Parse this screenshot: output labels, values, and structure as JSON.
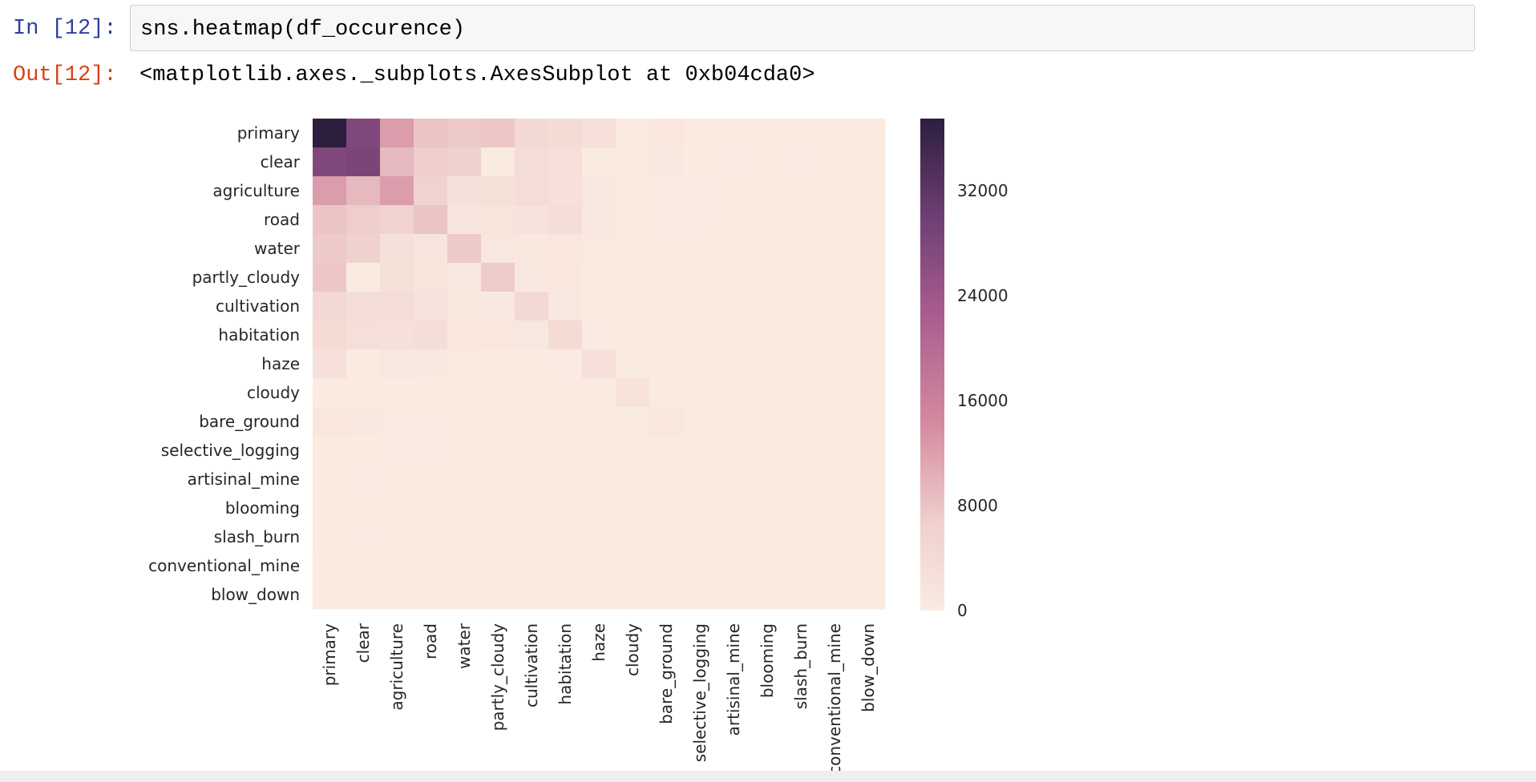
{
  "cell": {
    "in_prompt": "In [12]:",
    "code": "sns.heatmap(df_occurence)",
    "out_prompt": "Out[12]:",
    "output_text": "<matplotlib.axes._subplots.AxesSubplot at 0xb04cda0>"
  },
  "colors": {
    "prompt_in": "#303f9f",
    "prompt_out": "#d84315",
    "cmap_low": "#faebe1",
    "cmap_mid": "#d48aa0",
    "cmap_high": "#2d1e3e"
  },
  "chart_data": {
    "type": "heatmap",
    "title": "",
    "xlabel": "",
    "ylabel": "",
    "rows": [
      "primary",
      "clear",
      "agriculture",
      "road",
      "water",
      "partly_cloudy",
      "cultivation",
      "habitation",
      "haze",
      "cloudy",
      "bare_ground",
      "selective_logging",
      "artisinal_mine",
      "blooming",
      "slash_burn",
      "conventional_mine",
      "blow_down"
    ],
    "columns": [
      "primary",
      "clear",
      "agriculture",
      "road",
      "water",
      "partly_cloudy",
      "cultivation",
      "habitation",
      "haze",
      "cloudy",
      "bare_ground",
      "selective_logging",
      "artisinal_mine",
      "blooming",
      "slash_burn",
      "conventional_mine",
      "blow_down"
    ],
    "values": [
      [
        37500,
        27700,
        12300,
        8000,
        7400,
        7700,
        4500,
        3700,
        2700,
        0,
        900,
        300,
        300,
        300,
        200,
        100,
        100
      ],
      [
        27700,
        28400,
        9200,
        7100,
        6500,
        0,
        3500,
        3000,
        0,
        0,
        750,
        250,
        150,
        250,
        150,
        60,
        80
      ],
      [
        12300,
        9200,
        12300,
        6000,
        2400,
        2800,
        3400,
        2700,
        1100,
        0,
        450,
        140,
        40,
        30,
        120,
        20,
        20
      ],
      [
        8000,
        7100,
        6000,
        8000,
        1700,
        1600,
        2000,
        3200,
        800,
        0,
        400,
        130,
        30,
        30,
        100,
        100,
        10
      ],
      [
        7400,
        6500,
        2400,
        1700,
        7400,
        1100,
        850,
        920,
        520,
        0,
        320,
        60,
        250,
        60,
        40,
        20,
        10
      ],
      [
        7700,
        0,
        2800,
        1600,
        1100,
        7200,
        750,
        900,
        0,
        0,
        60,
        10,
        10,
        5,
        10,
        10,
        5
      ],
      [
        4500,
        3500,
        3400,
        2000,
        850,
        750,
        4500,
        970,
        200,
        0,
        90,
        60,
        20,
        40,
        120,
        5,
        5
      ],
      [
        3700,
        3000,
        2700,
        3200,
        920,
        900,
        970,
        3700,
        150,
        0,
        260,
        10,
        30,
        10,
        30,
        10,
        5
      ],
      [
        2700,
        0,
        1100,
        800,
        520,
        0,
        200,
        150,
        2700,
        0,
        40,
        5,
        5,
        5,
        5,
        5,
        2
      ],
      [
        0,
        0,
        0,
        0,
        0,
        0,
        0,
        0,
        0,
        2100,
        0,
        0,
        0,
        0,
        0,
        0,
        0
      ],
      [
        900,
        750,
        450,
        400,
        320,
        60,
        90,
        260,
        40,
        0,
        900,
        5,
        40,
        5,
        5,
        10,
        5
      ],
      [
        300,
        250,
        140,
        130,
        60,
        10,
        60,
        10,
        5,
        0,
        5,
        300,
        5,
        10,
        5,
        0,
        5
      ],
      [
        300,
        150,
        40,
        30,
        250,
        10,
        20,
        30,
        5,
        0,
        40,
        5,
        300,
        0,
        0,
        10,
        0
      ],
      [
        300,
        250,
        30,
        30,
        60,
        5,
        40,
        10,
        5,
        0,
        5,
        10,
        0,
        300,
        5,
        0,
        5
      ],
      [
        200,
        150,
        120,
        100,
        40,
        10,
        120,
        30,
        5,
        0,
        5,
        5,
        0,
        5,
        200,
        0,
        0
      ],
      [
        100,
        60,
        20,
        100,
        20,
        10,
        5,
        10,
        5,
        0,
        10,
        0,
        10,
        0,
        0,
        100,
        0
      ],
      [
        100,
        80,
        20,
        10,
        10,
        5,
        5,
        5,
        2,
        0,
        5,
        5,
        0,
        5,
        0,
        0,
        100
      ]
    ],
    "vmin": 0,
    "vmax": 37500,
    "colorbar_ticks": [
      0,
      8000,
      16000,
      24000,
      32000
    ],
    "legend": "colorbar-right"
  }
}
